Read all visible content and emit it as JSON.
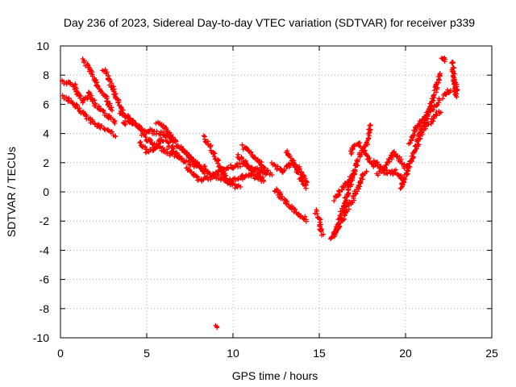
{
  "chart_data": {
    "type": "scatter",
    "title": "Day 236 of 2023, Sidereal Day-to-day VTEC variation (SDTVAR) for receiver p339",
    "xlabel": "GPS time / hours",
    "ylabel": "SDTVAR / TECUs",
    "xlim": [
      0,
      25
    ],
    "ylim": [
      -10,
      10
    ],
    "x_ticks": [
      0,
      5,
      10,
      15,
      20,
      25
    ],
    "x_tick_labels": [
      "0",
      "5",
      "10",
      "15",
      "20",
      "25"
    ],
    "y_ticks": [
      -10,
      -8,
      -6,
      -4,
      -2,
      0,
      2,
      4,
      6,
      8,
      10
    ],
    "y_tick_labels": [
      "-10",
      "-8",
      "-6",
      "-4",
      "-2",
      "0",
      "2",
      "4",
      "6",
      "8",
      "10"
    ],
    "grid": true,
    "marker": "+",
    "series": [
      {
        "name": "SDTVAR",
        "color": "#ff0000",
        "segments": [
          [
            [
              0.1,
              7.6
            ],
            [
              0.5,
              7.4
            ],
            [
              0.8,
              7.3
            ],
            [
              1.0,
              6.8
            ],
            [
              1.3,
              6.2
            ],
            [
              1.7,
              6.8
            ],
            [
              2.0,
              6.0
            ],
            [
              2.4,
              5.5
            ],
            [
              2.8,
              5.2
            ],
            [
              3.2,
              4.8
            ]
          ],
          [
            [
              0.1,
              6.6
            ],
            [
              0.5,
              6.3
            ],
            [
              0.9,
              5.9
            ],
            [
              1.3,
              5.4
            ],
            [
              1.8,
              4.8
            ],
            [
              2.3,
              4.5
            ],
            [
              2.8,
              4.2
            ],
            [
              3.2,
              3.9
            ]
          ],
          [
            [
              1.3,
              9.0
            ],
            [
              1.6,
              8.6
            ],
            [
              1.9,
              7.9
            ],
            [
              2.1,
              7.4
            ],
            [
              2.3,
              7.0
            ],
            [
              2.6,
              6.6
            ],
            [
              2.8,
              6.0
            ],
            [
              3.0,
              5.6
            ]
          ],
          [
            [
              2.5,
              8.4
            ],
            [
              2.8,
              7.8
            ],
            [
              3.1,
              6.9
            ],
            [
              3.4,
              6.0
            ],
            [
              3.6,
              5.4
            ]
          ],
          [
            [
              3.4,
              5.5
            ],
            [
              3.8,
              5.2
            ],
            [
              4.2,
              4.8
            ],
            [
              4.6,
              4.4
            ],
            [
              5.0,
              4.2
            ],
            [
              5.4,
              4.1
            ],
            [
              5.8,
              4.0
            ],
            [
              6.2,
              3.8
            ],
            [
              6.6,
              3.4
            ]
          ],
          [
            [
              3.6,
              4.6
            ],
            [
              4.0,
              4.9
            ],
            [
              4.4,
              4.6
            ],
            [
              4.8,
              3.9
            ],
            [
              5.2,
              3.4
            ],
            [
              5.6,
              3.1
            ],
            [
              6.0,
              2.9
            ],
            [
              6.4,
              2.6
            ],
            [
              6.8,
              2.5
            ]
          ],
          [
            [
              4.6,
              3.4
            ],
            [
              5.0,
              2.8
            ],
            [
              5.4,
              2.9
            ],
            [
              5.8,
              3.6
            ],
            [
              6.2,
              3.3
            ],
            [
              6.6,
              2.8
            ],
            [
              7.0,
              2.2
            ],
            [
              7.4,
              2.0
            ],
            [
              7.8,
              1.8
            ]
          ],
          [
            [
              5.6,
              4.8
            ],
            [
              6.0,
              4.4
            ],
            [
              6.4,
              3.8
            ],
            [
              6.8,
              3.2
            ],
            [
              7.2,
              2.7
            ],
            [
              7.6,
              2.2
            ],
            [
              8.0,
              1.8
            ],
            [
              8.4,
              1.6
            ]
          ],
          [
            [
              7.1,
              2.9
            ],
            [
              7.5,
              2.4
            ],
            [
              7.9,
              1.9
            ],
            [
              8.3,
              1.4
            ],
            [
              8.7,
              1.2
            ],
            [
              9.1,
              1.3
            ],
            [
              9.5,
              1.5
            ],
            [
              9.9,
              1.7
            ],
            [
              10.3,
              1.8
            ],
            [
              10.7,
              1.9
            ],
            [
              11.1,
              1.6
            ],
            [
              11.5,
              1.5
            ],
            [
              11.9,
              1.3
            ],
            [
              12.2,
              1.2
            ]
          ],
          [
            [
              7.3,
              1.6
            ],
            [
              7.7,
              1.2
            ],
            [
              8.1,
              0.8
            ],
            [
              8.5,
              0.9
            ],
            [
              8.9,
              1.1
            ],
            [
              9.3,
              0.9
            ],
            [
              9.7,
              0.6
            ],
            [
              10.1,
              0.8
            ],
            [
              10.5,
              1.0
            ],
            [
              10.9,
              1.2
            ],
            [
              11.3,
              1.0
            ],
            [
              11.7,
              0.8
            ]
          ],
          [
            [
              8.3,
              3.8
            ],
            [
              8.6,
              3.2
            ],
            [
              8.9,
              2.5
            ],
            [
              9.2,
              1.8
            ],
            [
              9.5,
              1.2
            ],
            [
              9.8,
              0.7
            ],
            [
              10.1,
              0.4
            ],
            [
              10.4,
              0.3
            ]
          ],
          [
            [
              10.3,
              2.5
            ],
            [
              10.6,
              2.1
            ],
            [
              10.9,
              1.7
            ],
            [
              11.2,
              1.4
            ],
            [
              11.5,
              1.1
            ],
            [
              11.8,
              0.8
            ]
          ],
          [
            [
              10.5,
              3.2
            ],
            [
              10.8,
              2.9
            ],
            [
              11.1,
              2.6
            ],
            [
              11.4,
              2.2
            ],
            [
              11.7,
              1.8
            ],
            [
              12.0,
              1.4
            ]
          ],
          [
            [
              12.3,
              1.9
            ],
            [
              12.6,
              1.6
            ],
            [
              12.9,
              1.4
            ],
            [
              13.2,
              1.8
            ],
            [
              13.5,
              1.9
            ],
            [
              13.8,
              1.6
            ],
            [
              14.1,
              1.0
            ],
            [
              14.3,
              0.5
            ]
          ],
          [
            [
              13.1,
              2.8
            ],
            [
              13.4,
              2.2
            ],
            [
              13.7,
              1.5
            ],
            [
              14.0,
              0.8
            ],
            [
              14.2,
              0.3
            ]
          ],
          [
            [
              12.4,
              0.2
            ],
            [
              12.7,
              -0.2
            ],
            [
              13.0,
              -0.6
            ],
            [
              13.3,
              -1.0
            ],
            [
              13.6,
              -1.3
            ],
            [
              13.9,
              -1.6
            ],
            [
              14.3,
              -1.9
            ]
          ],
          [
            [
              14.8,
              -1.3
            ],
            [
              15.0,
              -1.9
            ],
            [
              15.1,
              -2.6
            ],
            [
              15.2,
              -2.9
            ]
          ],
          [
            [
              15.8,
              -3.0
            ],
            [
              16.0,
              -2.5
            ],
            [
              16.2,
              -1.8
            ],
            [
              16.4,
              -1.0
            ],
            [
              16.6,
              -0.3
            ],
            [
              16.8,
              0.5
            ],
            [
              17.0,
              1.3
            ],
            [
              17.2,
              2.1
            ],
            [
              17.5,
              2.8
            ],
            [
              17.8,
              3.5
            ],
            [
              18.0,
              4.6
            ]
          ],
          [
            [
              15.6,
              -3.2
            ],
            [
              15.9,
              -2.9
            ],
            [
              16.2,
              -2.3
            ],
            [
              16.5,
              -1.5
            ],
            [
              16.8,
              -0.8
            ],
            [
              17.1,
              -0.1
            ],
            [
              17.4,
              0.7
            ],
            [
              17.7,
              1.4
            ]
          ],
          [
            [
              15.9,
              -0.5
            ],
            [
              16.2,
              0.1
            ],
            [
              16.5,
              0.5
            ],
            [
              16.8,
              0.9
            ],
            [
              17.1,
              1.2
            ]
          ],
          [
            [
              16.8,
              2.6
            ],
            [
              17.0,
              3.1
            ],
            [
              17.3,
              3.3
            ],
            [
              17.6,
              2.8
            ],
            [
              17.9,
              2.2
            ],
            [
              18.2,
              1.8
            ]
          ],
          [
            [
              18.2,
              2.2
            ],
            [
              18.5,
              1.7
            ],
            [
              18.8,
              1.4
            ],
            [
              19.1,
              1.3
            ],
            [
              19.4,
              1.4
            ],
            [
              19.7,
              1.1
            ],
            [
              19.9,
              0.8
            ]
          ],
          [
            [
              18.4,
              1.2
            ],
            [
              18.7,
              1.5
            ],
            [
              19.0,
              2.1
            ],
            [
              19.3,
              2.7
            ],
            [
              19.6,
              2.3
            ],
            [
              19.9,
              1.8
            ],
            [
              20.2,
              1.6
            ]
          ],
          [
            [
              19.7,
              0.2
            ],
            [
              19.9,
              0.7
            ],
            [
              20.1,
              1.4
            ],
            [
              20.3,
              2.1
            ],
            [
              20.5,
              2.7
            ],
            [
              20.7,
              3.3
            ],
            [
              20.9,
              3.8
            ]
          ],
          [
            [
              20.2,
              3.3
            ],
            [
              20.4,
              3.9
            ],
            [
              20.6,
              4.4
            ],
            [
              20.9,
              4.8
            ],
            [
              21.2,
              5.2
            ],
            [
              21.5,
              5.6
            ],
            [
              21.8,
              6.0
            ],
            [
              22.0,
              6.3
            ]
          ],
          [
            [
              20.6,
              3.5
            ],
            [
              20.9,
              4.1
            ],
            [
              21.2,
              5.0
            ],
            [
              21.5,
              6.0
            ],
            [
              21.8,
              7.2
            ],
            [
              22.0,
              8.2
            ]
          ],
          [
            [
              20.9,
              4.0
            ],
            [
              21.2,
              4.5
            ],
            [
              21.5,
              4.9
            ],
            [
              21.8,
              5.3
            ],
            [
              22.0,
              5.5
            ]
          ],
          [
            [
              22.1,
              9.3
            ],
            [
              22.2,
              9.2
            ],
            [
              22.3,
              9.0
            ]
          ],
          [
            [
              22.2,
              6.5
            ],
            [
              22.4,
              6.8
            ],
            [
              22.6,
              7.0
            ]
          ],
          [
            [
              22.8,
              7.8
            ],
            [
              22.9,
              7.4
            ],
            [
              23.0,
              7.1
            ],
            [
              22.9,
              6.6
            ],
            [
              22.7,
              9.0
            ]
          ],
          [
            [
              9.0,
              -9.2
            ],
            [
              9.1,
              -9.25
            ]
          ]
        ]
      }
    ]
  }
}
